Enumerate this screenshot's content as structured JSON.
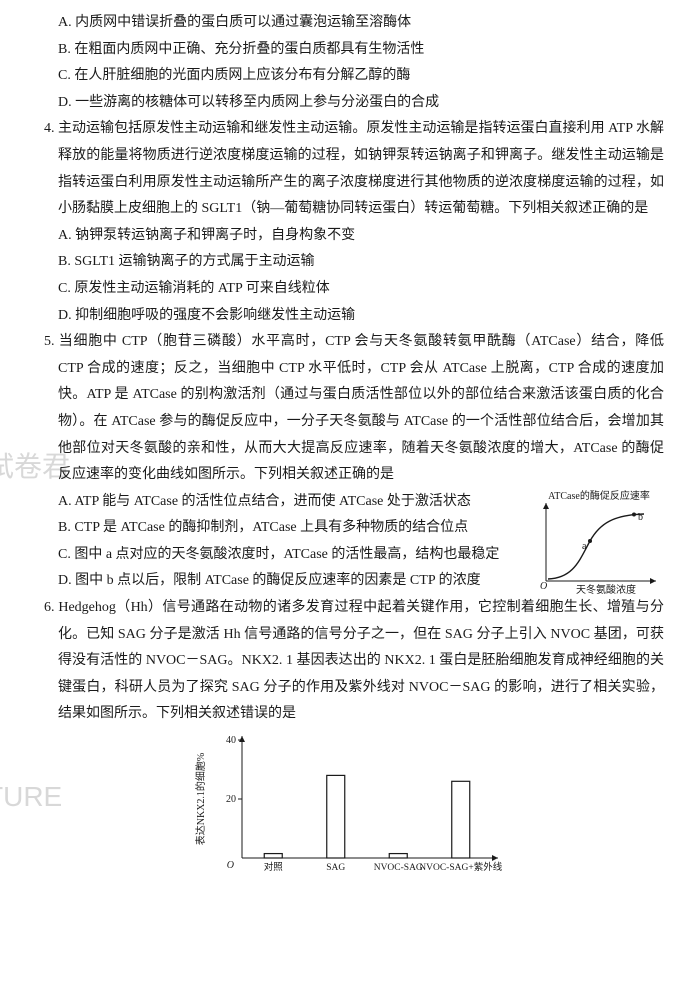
{
  "watermarks": {
    "wm1": "试卷君",
    "wm2": "TURE"
  },
  "q3_opts": {
    "A": "A. 内质网中错误折叠的蛋白质可以通过囊泡运输至溶酶体",
    "B": "B. 在粗面内质网中正确、充分折叠的蛋白质都具有生物活性",
    "C": "C. 在人肝脏细胞的光面内质网上应该分布有分解乙醇的酶",
    "D": "D. 一些游离的核糖体可以转移至内质网上参与分泌蛋白的合成"
  },
  "q4": {
    "stem": "4. 主动运输包括原发性主动运输和继发性主动运输。原发性主动运输是指转运蛋白直接利用 ATP 水解释放的能量将物质进行逆浓度梯度运输的过程，如钠钾泵转运钠离子和钾离子。继发性主动运输是指转运蛋白利用原发性主动运输所产生的离子浓度梯度进行其他物质的逆浓度梯度运输的过程，如小肠黏膜上皮细胞上的 SGLT1（钠—葡萄糖协同转运蛋白）转运葡萄糖。下列相关叙述正确的是",
    "A": "A. 钠钾泵转运钠离子和钾离子时，自身构象不变",
    "B": "B. SGLT1 运输钠离子的方式属于主动运输",
    "C": "C. 原发性主动运输消耗的 ATP 可来自线粒体",
    "D": "D. 抑制细胞呼吸的强度不会影响继发性主动运输"
  },
  "q5": {
    "stem": "5. 当细胞中 CTP（胞苷三磷酸）水平高时，CTP 会与天冬氨酸转氨甲酰酶（ATCase）结合，降低 CTP 合成的速度；反之，当细胞中 CTP 水平低时，CTP 会从 ATCase 上脱离，CTP 合成的速度加快。ATP 是 ATCase 的别构激活剂（通过与蛋白质活性部位以外的部位结合来激活该蛋白质的化合物）。在 ATCase 参与的酶促反应中，一分子天冬氨酸与 ATCase 的一个活性部位结合后，会增加其他部位对天冬氨酸的亲和性，从而大大提高反应速率，随着天冬氨酸浓度的增大，ATCase 的酶促反应速率的变化曲线如图所示。下列相关叙述正确的是",
    "A": "A. ATP 能与 ATCase 的活性位点结合，进而使 ATCase 处于激活状态",
    "B": "B. CTP 是 ATCase 的酶抑制剂，ATCase 上具有多种物质的结合位点",
    "C": "C. 图中 a 点对应的天冬氨酸浓度时，ATCase 的活性最高，结构也最稳定",
    "D": "D. 图中 b 点以后，限制 ATCase 的酶促反应速率的因素是 CTP 的浓度",
    "fig": {
      "ylabel": "ATCase的酶促反应速率",
      "xlabel": "天冬氨酸浓度",
      "pts": {
        "a": "a",
        "b": "b"
      },
      "origin": "O",
      "curve_color": "#1a1a1a",
      "axis_color": "#1a1a1a"
    }
  },
  "q6": {
    "stem": "6. Hedgehog（Hh）信号通路在动物的诸多发育过程中起着关键作用，它控制着细胞生长、增殖与分化。已知 SAG 分子是激活 Hh 信号通路的信号分子之一，但在 SAG 分子上引入 NVOC 基团，可获得没有活性的 NVOC－SAG。NKX2. 1 基因表达出的 NKX2. 1 蛋白是胚胎细胞发育成神经细胞的关键蛋白，科研人员为了探究 SAG 分子的作用及紫外线对 NVOC－SAG 的影响，进行了相关实验，结果如图所示。下列相关叙述错误的是",
    "chart": {
      "type": "bar",
      "ylabel": "表达NKX2.1的细胞%",
      "ylim": [
        0,
        40
      ],
      "yticks": [
        0,
        20,
        40
      ],
      "origin": "O",
      "categories": [
        "对照",
        "SAG",
        "NVOC-SAG",
        "NVOC-SAG+紫外线"
      ],
      "values": [
        1.5,
        28,
        1.5,
        26
      ],
      "bar_color": "#ffffff",
      "bar_border": "#1a1a1a",
      "bar_border_width": 1.2,
      "axis_color": "#1a1a1a",
      "label_fontsize": 10
    }
  }
}
